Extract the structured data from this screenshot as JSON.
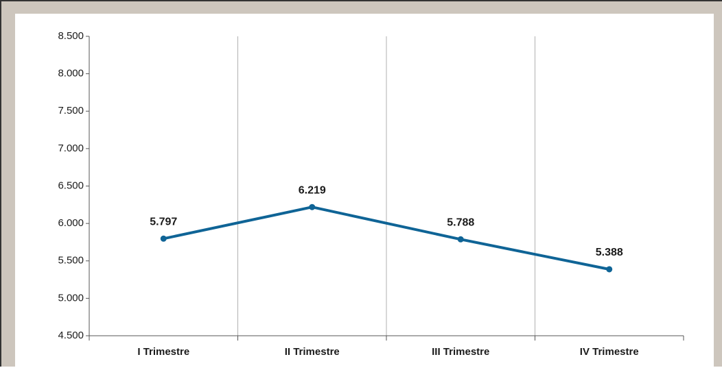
{
  "chart_data": {
    "type": "line",
    "categories": [
      "I Trimestre",
      "II Trimestre",
      "III Trimestre",
      "IV Trimestre"
    ],
    "series": [
      {
        "color": "#0f6496",
        "values": [
          5797,
          6219,
          5788,
          5388
        ],
        "value_labels": [
          "5.797",
          "6.219",
          "5.788",
          "5.388"
        ]
      }
    ],
    "ylim": [
      4500,
      8500
    ],
    "yticks": [
      {
        "value": 4500,
        "label": "4.500"
      },
      {
        "value": 5000,
        "label": "5.000"
      },
      {
        "value": 5500,
        "label": "5.500"
      },
      {
        "value": 6000,
        "label": "6.000"
      },
      {
        "value": 6500,
        "label": "6.500"
      },
      {
        "value": 7000,
        "label": "7.000"
      },
      {
        "value": 7500,
        "label": "7.500"
      },
      {
        "value": 8000,
        "label": "8.000"
      },
      {
        "value": 8500,
        "label": "8.500"
      }
    ]
  }
}
